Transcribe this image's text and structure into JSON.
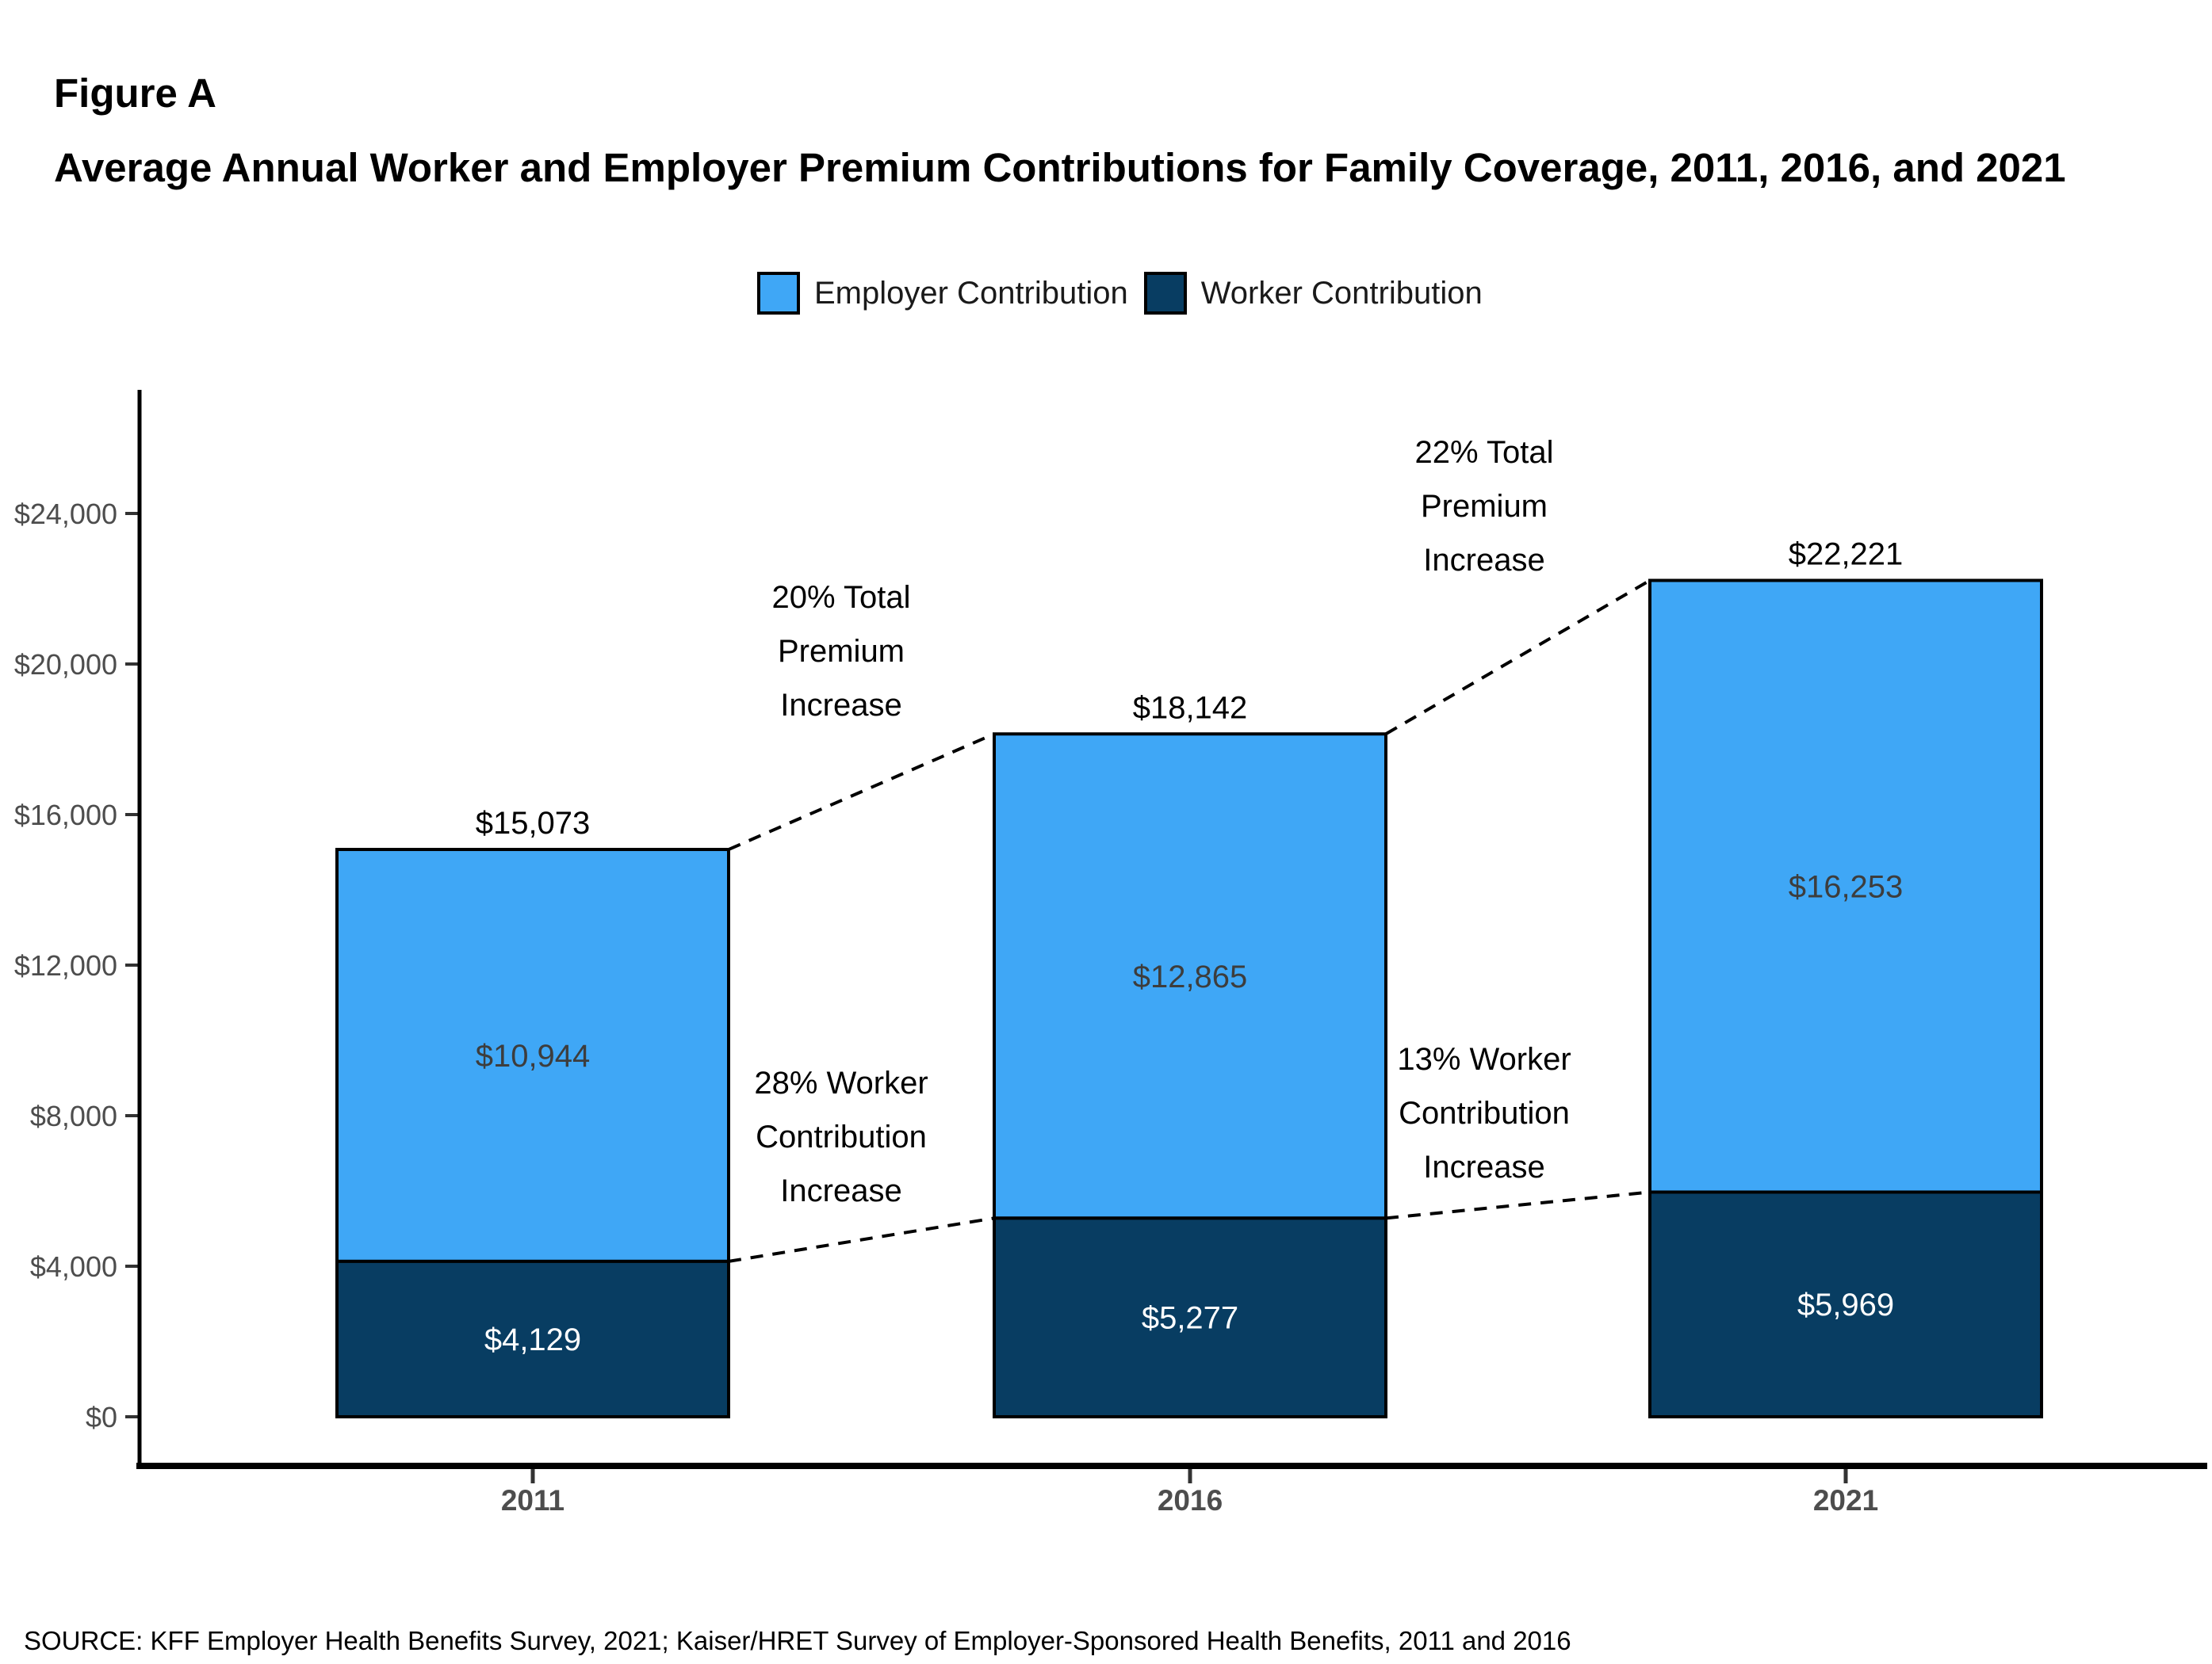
{
  "figure_label": "Figure A",
  "title": "Average Annual Worker and Employer Premium Contributions for Family Coverage, 2011, 2016, and 2021",
  "source": "SOURCE: KFF Employer Health Benefits Survey, 2021; Kaiser/HRET Survey of Employer-Sponsored Health Benefits, 2011 and 2016",
  "legend": [
    {
      "label": "Employer Contribution",
      "color": "#3FA7F6"
    },
    {
      "label": "Worker Contribution",
      "color": "#083D62"
    }
  ],
  "chart_data": {
    "type": "bar",
    "stacked": true,
    "title": "Average Annual Worker and Employer Premium Contributions for Family Coverage, 2011, 2016, and 2021",
    "categories": [
      "2011",
      "2016",
      "2021"
    ],
    "series": [
      {
        "name": "Worker Contribution",
        "color": "#083D62",
        "values": [
          4129,
          5277,
          5969
        ],
        "label_color": "#ffffff"
      },
      {
        "name": "Employer Contribution",
        "color": "#3FA7F6",
        "values": [
          10944,
          12865,
          16253
        ],
        "label_color": "#3d3d3d"
      }
    ],
    "totals": [
      15073,
      18142,
      22221
    ],
    "yticks": [
      0,
      4000,
      8000,
      12000,
      16000,
      20000,
      24000
    ],
    "ylim": [
      0,
      24000
    ],
    "grid": false,
    "legend_position": "top",
    "xlabel": "",
    "ylabel": "",
    "annotations": [
      {
        "lines": [
          "20% Total",
          "Premium",
          "Increase"
        ],
        "x": 1061,
        "y": 753
      },
      {
        "lines": [
          "22% Total",
          "Premium",
          "Increase"
        ],
        "x": 1872,
        "y": 570
      },
      {
        "lines": [
          "28% Worker",
          "Contribution",
          "Increase"
        ],
        "x": 1061,
        "y": 1366
      },
      {
        "lines": [
          "13% Worker",
          "Contribution",
          "Increase"
        ],
        "x": 1872,
        "y": 1336
      }
    ],
    "connectors": "Dashed lines join adjacent bar total tops and adjacent worker-contribution tops"
  }
}
